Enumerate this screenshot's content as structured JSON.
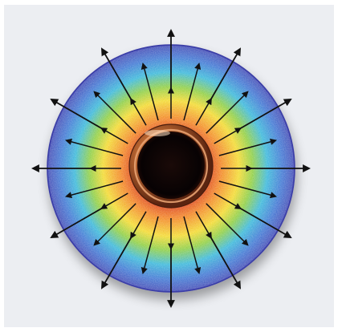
{
  "figure": {
    "kind": "radial-heat-flow-diagram",
    "background_color": "#eceef2",
    "gradient_colors": {
      "hot": "#d83a14",
      "warm_orange": "#f27e1c",
      "yellow": "#f3d92a",
      "green": "#8ccd3c",
      "cyan": "#34b6d9",
      "blue": "#3a73d2",
      "cold": "#3f45b2"
    },
    "outer_arrow_count": 12,
    "inner_arrow_count": 24,
    "arrow_color": "#111111",
    "pipe_color": "#b5612d",
    "pipe_bore_color": "#0a0404",
    "icons": [
      "copper-pipe-icon",
      "heat-flow-arrow-icon"
    ]
  }
}
